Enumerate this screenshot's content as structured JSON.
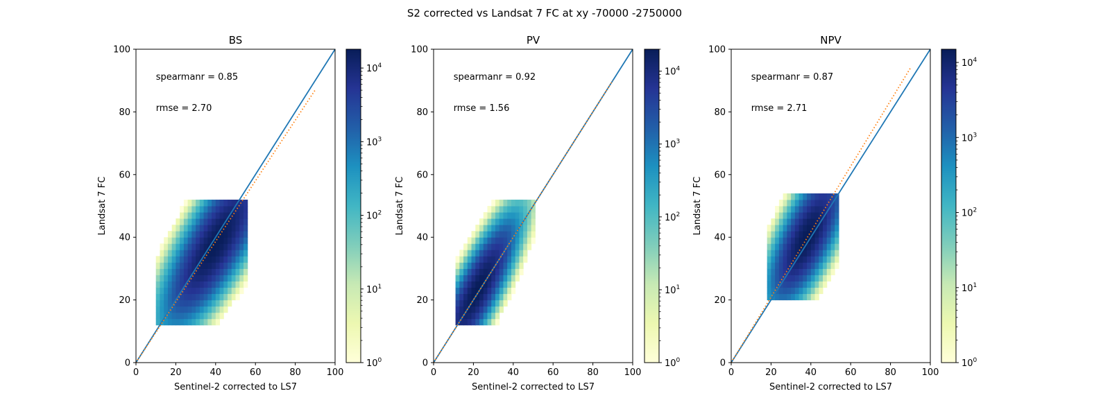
{
  "figure": {
    "title": "S2 corrected vs Landsat 7 FC at xy -70000 -2750000"
  },
  "chart_data": [
    {
      "type": "heatmap",
      "title": "BS",
      "xlabel": "Sentinel-2 corrected to LS7",
      "ylabel": "Landsat 7 FC",
      "xlim": [
        0,
        100
      ],
      "ylim": [
        0,
        100
      ],
      "xticks": [
        0,
        20,
        40,
        60,
        80,
        100
      ],
      "yticks": [
        0,
        20,
        40,
        60,
        80,
        100
      ],
      "grid": false,
      "annotations": [
        "spearmanr = 0.85",
        "rmse = 2.70"
      ],
      "colorbar": {
        "scale": "log",
        "min": 1,
        "max": 18000,
        "tick_labels": [
          "10^0",
          "10^1",
          "10^2",
          "10^3",
          "10^4"
        ]
      },
      "density": {
        "center": [
          40,
          38
        ],
        "spread_major": 13,
        "spread_minor": 4.5,
        "angle_deg": 45,
        "peak_count": 18000,
        "x_range": [
          10,
          55
        ],
        "y_range": [
          12,
          52
        ]
      },
      "one_to_one_line": {
        "from": [
          0,
          0
        ],
        "to": [
          100,
          100
        ],
        "color": "#1f77b4"
      },
      "fit_line": {
        "from": [
          0,
          0
        ],
        "to": [
          90,
          87
        ],
        "color": "#ff7f0e",
        "style": "dotted"
      }
    },
    {
      "type": "heatmap",
      "title": "PV",
      "xlabel": "Sentinel-2 corrected to LS7",
      "ylabel": "Landsat 7 FC",
      "xlim": [
        0,
        100
      ],
      "ylim": [
        0,
        100
      ],
      "xticks": [
        0,
        20,
        40,
        60,
        80,
        100
      ],
      "yticks": [
        0,
        20,
        40,
        60,
        80,
        100
      ],
      "grid": false,
      "annotations": [
        "spearmanr = 0.92",
        "rmse = 1.56"
      ],
      "colorbar": {
        "scale": "log",
        "min": 1,
        "max": 20000,
        "tick_labels": [
          "10^0",
          "10^1",
          "10^2",
          "10^3",
          "10^4"
        ]
      },
      "density": {
        "center": [
          22,
          23
        ],
        "spread_major": 11,
        "spread_minor": 3.2,
        "angle_deg": 50,
        "peak_count": 20000,
        "x_range": [
          11,
          50
        ],
        "y_range": [
          12,
          52
        ]
      },
      "one_to_one_line": {
        "from": [
          0,
          0
        ],
        "to": [
          100,
          100
        ],
        "color": "#1f77b4"
      },
      "fit_line": {
        "from": [
          0,
          0
        ],
        "to": [
          90,
          90
        ],
        "color": "#ff7f0e",
        "style": "dotted"
      }
    },
    {
      "type": "heatmap",
      "title": "NPV",
      "xlabel": "Sentinel-2 corrected to LS7",
      "ylabel": "Landsat 7 FC",
      "xlim": [
        0,
        100
      ],
      "ylim": [
        0,
        100
      ],
      "xticks": [
        0,
        20,
        40,
        60,
        80,
        100
      ],
      "yticks": [
        0,
        20,
        40,
        60,
        80,
        100
      ],
      "grid": false,
      "annotations": [
        "spearmanr = 0.87",
        "rmse = 2.71"
      ],
      "colorbar": {
        "scale": "log",
        "min": 1,
        "max": 15000,
        "tick_labels": [
          "10^0",
          "10^1",
          "10^2",
          "10^3",
          "10^4"
        ]
      },
      "density": {
        "center": [
          38,
          40
        ],
        "spread_major": 10,
        "spread_minor": 4,
        "angle_deg": 50,
        "peak_count": 15000,
        "x_range": [
          18,
          54
        ],
        "y_range": [
          20,
          54
        ]
      },
      "one_to_one_line": {
        "from": [
          0,
          0
        ],
        "to": [
          100,
          100
        ],
        "color": "#1f77b4"
      },
      "fit_line": {
        "from": [
          0,
          0
        ],
        "to": [
          90,
          94
        ],
        "color": "#ff7f0e",
        "style": "dotted"
      }
    }
  ]
}
